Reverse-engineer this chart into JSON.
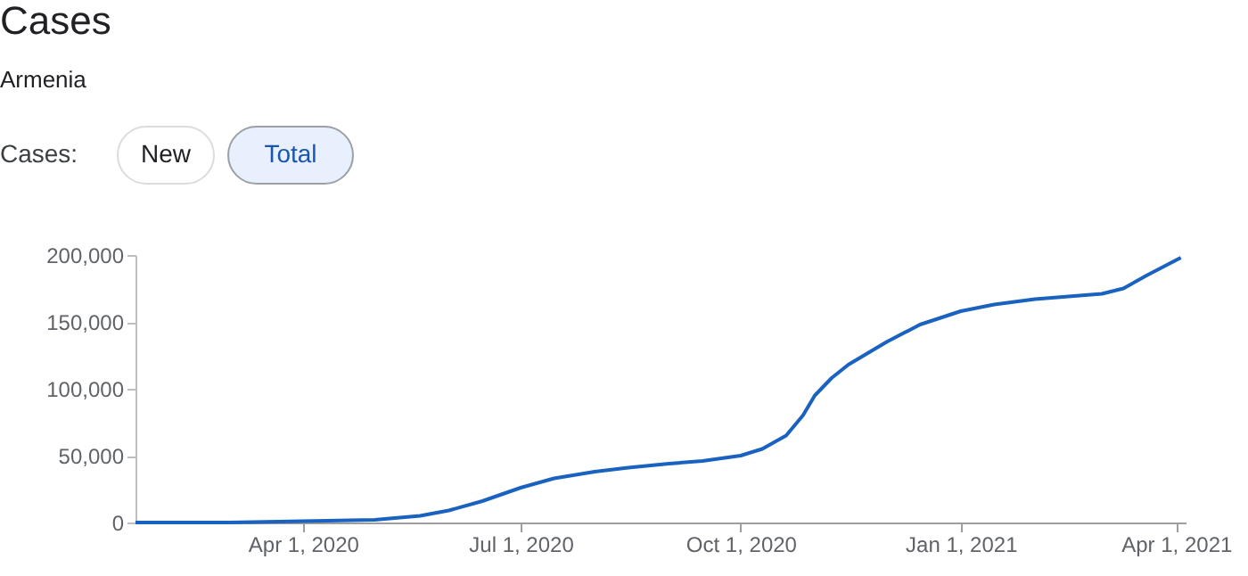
{
  "chart_data": {
    "type": "line",
    "title": "Cases",
    "subtitle": "Armenia",
    "annotations": [
      "Cases:",
      "New",
      "Total"
    ],
    "x": [
      "2020-01-22",
      "2020-03-01",
      "2020-04-01",
      "2020-05-01",
      "2020-05-20",
      "2020-06-01",
      "2020-06-15",
      "2020-07-01",
      "2020-07-15",
      "2020-08-01",
      "2020-08-15",
      "2020-09-01",
      "2020-09-15",
      "2020-10-01",
      "2020-10-10",
      "2020-10-20",
      "2020-10-27",
      "2020-11-01",
      "2020-11-08",
      "2020-11-15",
      "2020-12-01",
      "2020-12-15",
      "2021-01-01",
      "2021-01-15",
      "2021-02-01",
      "2021-03-01",
      "2021-03-10",
      "2021-03-20",
      "2021-04-03"
    ],
    "series": [
      {
        "color": "#1a62c0",
        "values": [
          0,
          0,
          1000,
          2000,
          5000,
          9000,
          16000,
          26000,
          33000,
          38000,
          41000,
          44000,
          46000,
          50000,
          55000,
          65000,
          80000,
          95000,
          108000,
          118000,
          135000,
          148000,
          158000,
          163000,
          167000,
          171000,
          175000,
          185000,
          198000
        ]
      }
    ],
    "xlim": [
      "2020-01-22",
      "2021-04-05"
    ],
    "xticks": [
      {
        "value": "2020-04-01",
        "label": "Apr 1, 2020"
      },
      {
        "value": "2020-07-01",
        "label": "Jul 1, 2020"
      },
      {
        "value": "2020-10-01",
        "label": "Oct 1, 2020"
      },
      {
        "value": "2021-01-01",
        "label": "Jan 1, 2021"
      },
      {
        "value": "2021-04-01",
        "label": "Apr 1, 2021"
      }
    ],
    "ylim": [
      0,
      200000
    ],
    "yticks": [
      0,
      {
        "value": 50000,
        "label": "50,000"
      },
      {
        "value": 100000,
        "label": "100,000"
      },
      {
        "value": 150000,
        "label": "150,000"
      },
      {
        "value": 200000,
        "label": "200,000"
      }
    ],
    "grid": false,
    "marker": "none",
    "line_style": "solid"
  }
}
